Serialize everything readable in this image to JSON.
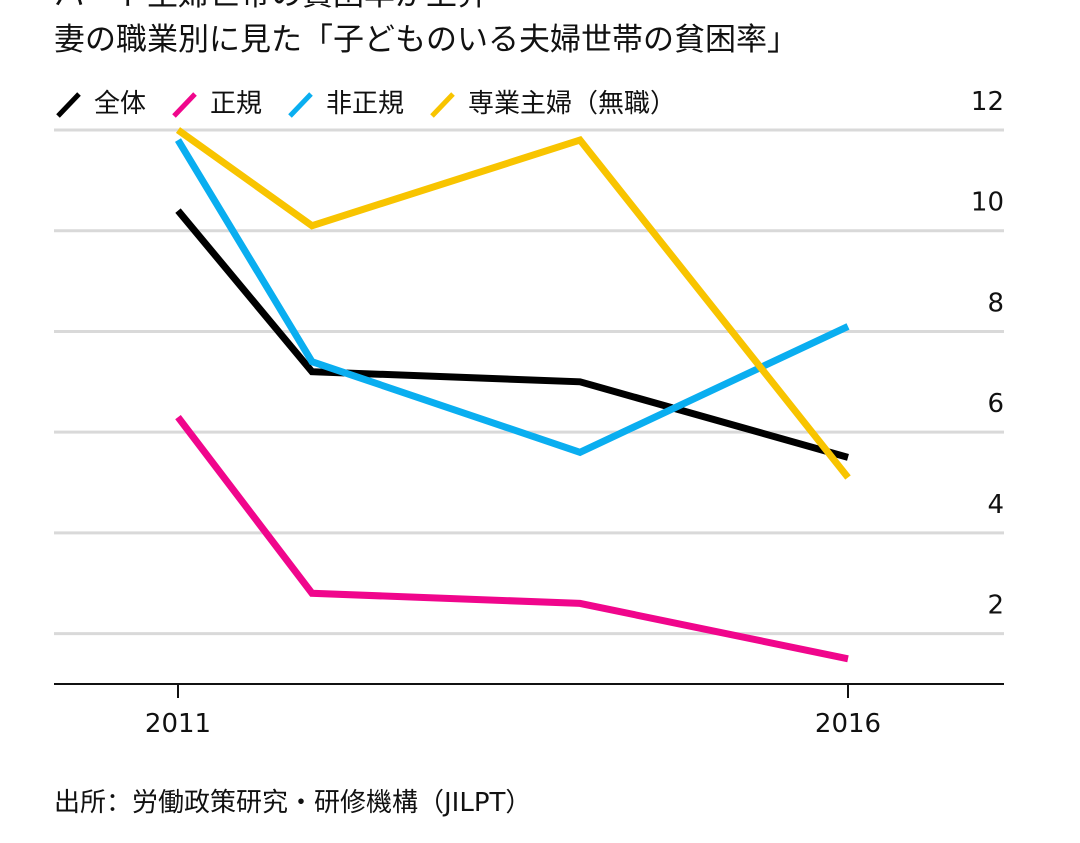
{
  "header": {
    "title": "パート主婦世帯の貧困率が上昇",
    "subtitle": "妻の職業別に見た「子どものいる夫婦世帯の貧困率」"
  },
  "source": "出所：労働政策研究・研修機構（JILPT）",
  "chart_data": {
    "type": "line",
    "title": "妻の職業別に見た「子どものいる夫婦世帯の貧困率」",
    "xlabel": "",
    "ylabel": "",
    "x": [
      2011,
      2012,
      2014,
      2016
    ],
    "x_tick_labels": [
      "2011",
      "2016"
    ],
    "x_tick_values": [
      2011,
      2016
    ],
    "ylim": [
      1,
      12
    ],
    "y_ticks": [
      2,
      4,
      6,
      8,
      10,
      12
    ],
    "y_axis_side": "right",
    "grid": true,
    "legend_position": "top-left",
    "series": [
      {
        "name": "全体",
        "color": "#000000",
        "values": [
          10.4,
          7.2,
          7.0,
          5.5
        ]
      },
      {
        "name": "正規",
        "color": "#f0068c",
        "values": [
          6.3,
          2.8,
          2.6,
          1.5
        ]
      },
      {
        "name": "非正規",
        "color": "#0aaef0",
        "values": [
          11.8,
          7.4,
          5.6,
          8.1
        ]
      },
      {
        "name": "専業主婦（無職）",
        "color": "#f8c400",
        "values": [
          12.0,
          10.1,
          11.8,
          5.1
        ]
      }
    ]
  }
}
